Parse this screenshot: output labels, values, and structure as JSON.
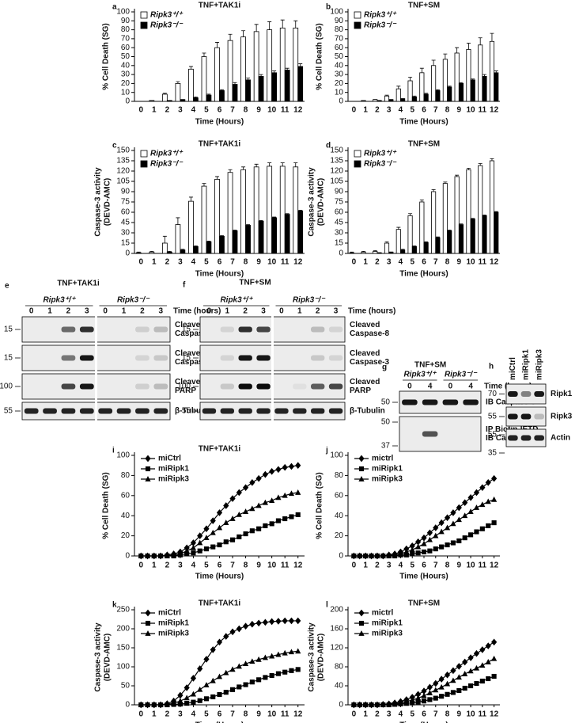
{
  "chart_data": [
    {
      "panel": "a",
      "type": "bar",
      "title": "TNF+TAK1i",
      "ylabel": [
        "% Cell Death (SG)"
      ],
      "xlabel": "Time (Hours)",
      "categories": [
        "0",
        "1",
        "2",
        "3",
        "4",
        "5",
        "6",
        "7",
        "8",
        "9",
        "10",
        "11",
        "12"
      ],
      "ylim": [
        0,
        100
      ],
      "yticks": [
        0,
        10,
        20,
        30,
        40,
        50,
        60,
        70,
        80,
        90,
        100
      ],
      "legend": "top-left",
      "series": [
        {
          "name": "Ripk3⁺/⁺",
          "color": "#ffffff",
          "values": [
            0,
            1,
            8,
            20,
            36,
            50,
            60,
            68,
            72,
            78,
            80,
            82,
            82
          ],
          "errors": [
            0,
            0,
            1,
            2,
            3,
            4,
            6,
            7,
            7,
            8,
            9,
            9,
            8
          ]
        },
        {
          "name": "Ripk3⁻/⁻",
          "color": "#000000",
          "values": [
            0,
            0,
            1,
            2,
            4,
            7,
            12,
            19,
            24,
            28,
            32,
            35,
            39
          ],
          "errors": [
            0,
            0,
            0,
            0,
            1,
            1,
            1,
            2,
            2,
            2,
            2,
            2,
            3
          ]
        }
      ]
    },
    {
      "panel": "b",
      "type": "bar",
      "title": "TNF+SM",
      "ylabel": [
        "% Cell Death (SG)"
      ],
      "xlabel": "Time (Hours)",
      "categories": [
        "0",
        "1",
        "2",
        "3",
        "4",
        "5",
        "6",
        "7",
        "8",
        "9",
        "10",
        "11",
        "12"
      ],
      "ylim": [
        0,
        100
      ],
      "yticks": [
        0,
        10,
        20,
        30,
        40,
        50,
        60,
        70,
        80,
        90,
        100
      ],
      "legend": "top-left",
      "series": [
        {
          "name": "Ripk3⁺/⁺",
          "color": "#ffffff",
          "values": [
            0,
            1,
            2,
            6,
            14,
            23,
            32,
            40,
            47,
            54,
            58,
            63,
            67
          ],
          "errors": [
            0,
            0,
            0,
            1,
            3,
            4,
            5,
            6,
            6,
            6,
            7,
            8,
            9
          ]
        },
        {
          "name": "Ripk3⁻/⁻",
          "color": "#000000",
          "values": [
            0,
            0,
            1,
            2,
            3,
            5,
            8,
            12,
            16,
            20,
            24,
            28,
            32
          ],
          "errors": [
            0,
            0,
            0,
            0,
            0,
            1,
            1,
            1,
            1,
            1,
            1,
            2,
            2
          ]
        }
      ]
    },
    {
      "panel": "c",
      "type": "bar",
      "title": "TNF+TAK1i",
      "ylabel": [
        "Caspase-3 activity",
        "(DEVD-AMC)"
      ],
      "xlabel": "Time (Hours)",
      "categories": [
        "0",
        "1",
        "2",
        "3",
        "4",
        "5",
        "6",
        "7",
        "8",
        "9",
        "10",
        "11",
        "12"
      ],
      "ylim": [
        0,
        150
      ],
      "yticks": [
        0,
        15,
        30,
        45,
        60,
        75,
        90,
        105,
        120,
        135,
        150
      ],
      "legend": "top-left",
      "series": [
        {
          "name": "Ripk3⁺/⁺",
          "color": "#ffffff",
          "values": [
            1,
            2,
            15,
            42,
            76,
            98,
            108,
            118,
            122,
            126,
            127,
            127,
            126
          ],
          "errors": [
            1,
            1,
            10,
            10,
            6,
            4,
            4,
            4,
            4,
            4,
            5,
            5,
            6
          ]
        },
        {
          "name": "Ripk3⁻/⁻",
          "color": "#000000",
          "values": [
            0,
            0,
            2,
            5,
            10,
            17,
            25,
            33,
            41,
            47,
            52,
            57,
            62
          ],
          "errors": [
            0,
            0,
            1,
            1,
            1,
            1,
            1,
            1,
            1,
            1,
            1,
            1,
            1
          ]
        }
      ]
    },
    {
      "panel": "d",
      "type": "bar",
      "title": "TNF+SM",
      "ylabel": [
        "Caspase-3 activity",
        "(DEVD-AMC)"
      ],
      "xlabel": "Time (Hours)",
      "categories": [
        "0",
        "1",
        "2",
        "3",
        "4",
        "5",
        "6",
        "7",
        "8",
        "9",
        "10",
        "11",
        "12"
      ],
      "ylim": [
        0,
        150
      ],
      "yticks": [
        0,
        15,
        30,
        45,
        60,
        75,
        90,
        105,
        120,
        135,
        150
      ],
      "legend": "top-left",
      "series": [
        {
          "name": "Ripk3⁺/⁺",
          "color": "#ffffff",
          "values": [
            1,
            2,
            3,
            15,
            35,
            55,
            75,
            90,
            102,
            112,
            122,
            128,
            135
          ],
          "errors": [
            1,
            1,
            1,
            2,
            3,
            3,
            3,
            3,
            2,
            2,
            2,
            3,
            3
          ]
        },
        {
          "name": "Ripk3⁻/⁻",
          "color": "#000000",
          "values": [
            0,
            0,
            1,
            2,
            5,
            10,
            16,
            23,
            33,
            42,
            50,
            55,
            60
          ],
          "errors": [
            0,
            0,
            0,
            0,
            1,
            1,
            1,
            1,
            1,
            1,
            1,
            1,
            1
          ]
        }
      ]
    },
    {
      "panel": "i",
      "type": "line",
      "title": "TNF+TAK1i",
      "ylabel": [
        "% Cell Death (SG)"
      ],
      "xlabel": "Time (Hours)",
      "x": [
        0,
        0.5,
        1,
        1.5,
        2,
        2.5,
        3,
        3.5,
        4,
        4.5,
        5,
        5.5,
        6,
        6.5,
        7,
        7.5,
        8,
        8.5,
        9,
        9.5,
        10,
        10.5,
        11,
        11.5,
        12
      ],
      "xlim": [
        -0.5,
        12.5
      ],
      "xticks": [
        0,
        1,
        2,
        3,
        4,
        5,
        6,
        7,
        8,
        9,
        10,
        11,
        12
      ],
      "ylim": [
        0,
        100
      ],
      "yticks": [
        0,
        20,
        40,
        60,
        80,
        100
      ],
      "legend": "top-left",
      "series": [
        {
          "name": "miCtrl",
          "color": "#000000",
          "marker": "diamond",
          "values": [
            0,
            0,
            0,
            0,
            1,
            2,
            4,
            8,
            13,
            20,
            27,
            35,
            43,
            50,
            57,
            63,
            68,
            73,
            77,
            81,
            84,
            86,
            88,
            89,
            90
          ]
        },
        {
          "name": "miRipk1",
          "color": "#000000",
          "marker": "square",
          "values": [
            0,
            0,
            0,
            0,
            0,
            0,
            1,
            2,
            3,
            5,
            7,
            9,
            11,
            14,
            16,
            19,
            22,
            25,
            27,
            30,
            32,
            35,
            37,
            39,
            41
          ]
        },
        {
          "name": "miRipk3",
          "color": "#000000",
          "marker": "triangle",
          "values": [
            0,
            0,
            0,
            0,
            0,
            1,
            2,
            5,
            8,
            13,
            18,
            23,
            28,
            33,
            37,
            41,
            44,
            47,
            50,
            53,
            55,
            58,
            60,
            62,
            63
          ]
        }
      ]
    },
    {
      "panel": "j",
      "type": "line",
      "title": "TNF+SM",
      "ylabel": [
        "% Cell Death (SG)"
      ],
      "xlabel": "Time (Hours)",
      "x": [
        0,
        0.5,
        1,
        1.5,
        2,
        2.5,
        3,
        3.5,
        4,
        4.5,
        5,
        5.5,
        6,
        6.5,
        7,
        7.5,
        8,
        8.5,
        9,
        9.5,
        10,
        10.5,
        11,
        11.5,
        12
      ],
      "xlim": [
        -0.5,
        12.5
      ],
      "xticks": [
        0,
        1,
        2,
        3,
        4,
        5,
        6,
        7,
        8,
        9,
        10,
        11,
        12
      ],
      "ylim": [
        0,
        100
      ],
      "yticks": [
        0,
        20,
        40,
        60,
        80,
        100
      ],
      "legend": "top-left",
      "series": [
        {
          "name": "mictrl",
          "color": "#000000",
          "marker": "diamond",
          "values": [
            0,
            0,
            0,
            0,
            0,
            0,
            1,
            2,
            4,
            7,
            10,
            14,
            18,
            23,
            28,
            33,
            38,
            43,
            48,
            53,
            58,
            63,
            68,
            73,
            77
          ]
        },
        {
          "name": "miRipk1",
          "color": "#000000",
          "marker": "square",
          "values": [
            0,
            0,
            0,
            0,
            0,
            0,
            0,
            0,
            1,
            1,
            2,
            3,
            4,
            5,
            7,
            9,
            11,
            13,
            15,
            18,
            21,
            24,
            27,
            30,
            33
          ]
        },
        {
          "name": "miRipk3",
          "color": "#000000",
          "marker": "triangle",
          "values": [
            0,
            0,
            0,
            0,
            0,
            0,
            0,
            1,
            2,
            4,
            6,
            9,
            12,
            16,
            20,
            24,
            28,
            32,
            36,
            40,
            44,
            48,
            51,
            54,
            56
          ]
        }
      ]
    },
    {
      "panel": "k",
      "type": "line",
      "title": "TNF+TAK1i",
      "ylabel": [
        "Caspase-3 activity",
        "(DEVD-AMC)"
      ],
      "xlabel": "Time (Hours)",
      "x": [
        0,
        0.5,
        1,
        1.5,
        2,
        2.5,
        3,
        3.5,
        4,
        4.5,
        5,
        5.5,
        6,
        6.5,
        7,
        7.5,
        8,
        8.5,
        9,
        9.5,
        10,
        10.5,
        11,
        11.5,
        12
      ],
      "xlim": [
        -0.5,
        12.5
      ],
      "xticks": [
        0,
        1,
        2,
        3,
        4,
        5,
        6,
        7,
        8,
        9,
        10,
        11,
        12
      ],
      "ylim": [
        0,
        250
      ],
      "yticks": [
        0,
        50,
        100,
        150,
        200,
        250
      ],
      "legend": "top-left",
      "series": [
        {
          "name": "miCtrl",
          "color": "#000000",
          "marker": "diamond",
          "values": [
            0,
            0,
            0,
            0,
            3,
            10,
            25,
            45,
            70,
            95,
            120,
            145,
            165,
            180,
            192,
            200,
            207,
            212,
            215,
            217,
            219,
            220,
            221,
            221,
            221
          ]
        },
        {
          "name": "miRipk1",
          "color": "#000000",
          "marker": "square",
          "values": [
            0,
            0,
            0,
            0,
            0,
            1,
            2,
            4,
            7,
            11,
            16,
            21,
            27,
            33,
            40,
            47,
            53,
            60,
            66,
            72,
            77,
            82,
            86,
            90,
            93
          ]
        },
        {
          "name": "miRipk3",
          "color": "#000000",
          "marker": "triangle",
          "values": [
            0,
            0,
            0,
            0,
            1,
            4,
            10,
            18,
            28,
            40,
            52,
            63,
            74,
            84,
            93,
            101,
            108,
            114,
            119,
            124,
            128,
            132,
            136,
            139,
            141
          ]
        }
      ]
    },
    {
      "panel": "l",
      "type": "line",
      "title": "TNF+SM",
      "ylabel": [
        "Caspase-3 activity",
        "(DEVD-AMC)"
      ],
      "xlabel": "Time (Hours)",
      "x": [
        0,
        0.5,
        1,
        1.5,
        2,
        2.5,
        3,
        3.5,
        4,
        4.5,
        5,
        5.5,
        6,
        6.5,
        7,
        7.5,
        8,
        8.5,
        9,
        9.5,
        10,
        10.5,
        11,
        11.5,
        12
      ],
      "xlim": [
        -0.5,
        12.5
      ],
      "xticks": [
        0,
        1,
        2,
        3,
        4,
        5,
        6,
        7,
        8,
        9,
        10,
        11,
        12
      ],
      "ylim": [
        0,
        200
      ],
      "yticks": [
        0,
        40,
        80,
        120,
        160,
        200
      ],
      "legend": "top-left",
      "series": [
        {
          "name": "mictrl",
          "color": "#000000",
          "marker": "diamond",
          "values": [
            0,
            0,
            0,
            0,
            0,
            1,
            2,
            4,
            7,
            11,
            16,
            22,
            29,
            37,
            45,
            54,
            63,
            72,
            81,
            90,
            99,
            108,
            116,
            124,
            132
          ]
        },
        {
          "name": "miRipk1",
          "color": "#000000",
          "marker": "square",
          "values": [
            0,
            0,
            0,
            0,
            0,
            0,
            0,
            1,
            2,
            3,
            4,
            6,
            8,
            11,
            14,
            18,
            22,
            26,
            30,
            35,
            40,
            45,
            50,
            55,
            60
          ]
        },
        {
          "name": "miRipk3",
          "color": "#000000",
          "marker": "triangle",
          "values": [
            0,
            0,
            0,
            0,
            0,
            0,
            1,
            2,
            4,
            7,
            10,
            14,
            19,
            25,
            31,
            37,
            44,
            51,
            58,
            65,
            71,
            77,
            83,
            90,
            97
          ]
        }
      ]
    }
  ],
  "blots": [
    {
      "panel": "e",
      "title": "TNF+TAK1i",
      "groups": [
        "Ripk3⁺/⁺",
        "Ripk3⁻/⁻"
      ],
      "lanes": [
        "0",
        "1",
        "2",
        "3",
        "0",
        "1",
        "2",
        "3"
      ],
      "lane_title": "Time (hours)",
      "rows": [
        {
          "label": [
            "Cleaved",
            "Caspase-8"
          ],
          "mw": [
            "15"
          ]
        },
        {
          "label": [
            "Cleaved",
            "Caspase-3"
          ],
          "mw": [
            "15"
          ]
        },
        {
          "label": [
            "Cleaved",
            "PARP"
          ],
          "mw": [
            "100"
          ]
        },
        {
          "label": [
            "β-Tubulin"
          ],
          "mw": [
            "55"
          ]
        }
      ]
    },
    {
      "panel": "f",
      "title": "TNF+SM",
      "groups": [
        "Ripk3⁺/⁺",
        "Ripk3⁻/⁻"
      ],
      "lanes": [
        "0",
        "1",
        "2",
        "3",
        "0",
        "1",
        "2",
        "3"
      ],
      "lane_title": "Time (hours)",
      "rows": [
        {
          "label": [
            "Cleaved",
            "Caspase-8"
          ],
          "mw": [
            "15"
          ]
        },
        {
          "label": [
            "Cleaved",
            "Caspase-3"
          ],
          "mw": [
            "15"
          ]
        },
        {
          "label": [
            "Cleaved",
            "PARP"
          ],
          "mw": [
            "100"
          ]
        },
        {
          "label": [
            "β-Tubulin"
          ],
          "mw": [
            "55"
          ]
        }
      ]
    },
    {
      "panel": "g",
      "title": "TNF+SM",
      "groups": [
        "Ripk3⁺/⁺",
        "Ripk3⁻/⁻"
      ],
      "lanes": [
        "0",
        "4",
        "0",
        "4"
      ],
      "lane_title": "Time (hours)",
      "rows": [
        {
          "label": [
            "IB Caspase-8"
          ],
          "mw": [
            "50"
          ]
        },
        {
          "label": [
            "IP Biotin-IETD",
            "IB Caspase-8"
          ],
          "mw": [
            "50",
            "37"
          ]
        }
      ]
    },
    {
      "panel": "h",
      "lanes": [
        "miCtrl",
        "miRipk1",
        "miRipk3"
      ],
      "rows": [
        {
          "label": [
            "Ripk1"
          ],
          "mw": [
            "70"
          ]
        },
        {
          "label": [
            "Ripk3"
          ],
          "mw": [
            "55"
          ]
        },
        {
          "label": [
            "Actin"
          ],
          "mw": [
            "55",
            "35"
          ]
        }
      ]
    }
  ]
}
